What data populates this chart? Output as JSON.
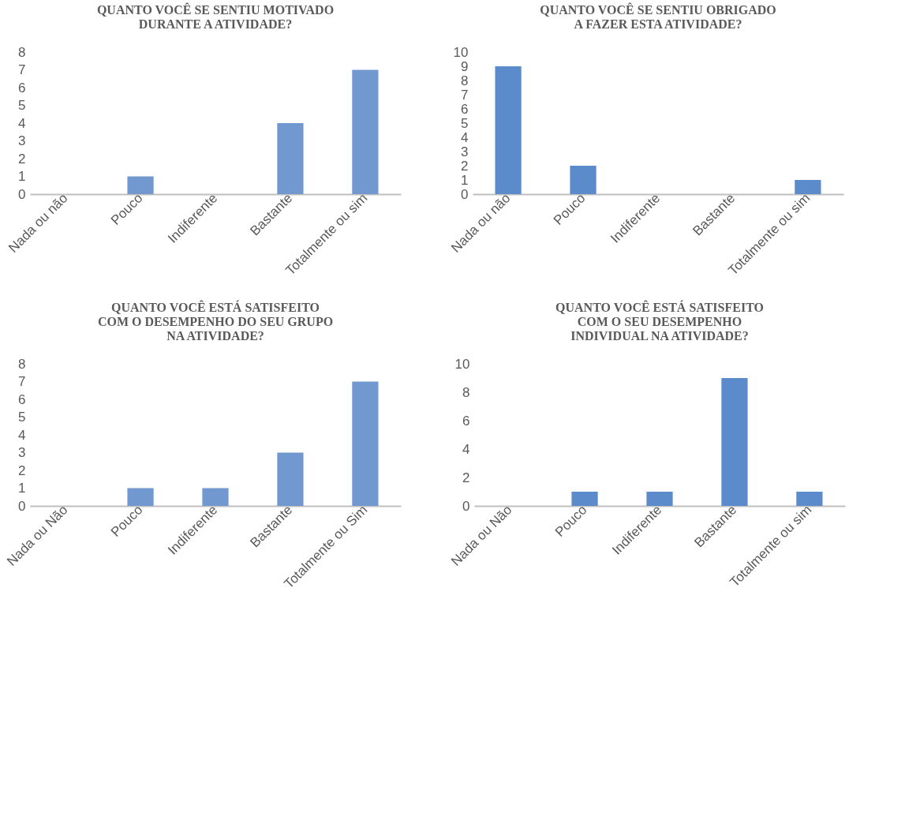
{
  "chart_data": [
    {
      "type": "bar",
      "title": "QUANTO VOCÊ SE SENTIU MOTIVADO DURANTE A ATIVIDADE?",
      "categories": [
        "Nada ou não",
        "Pouco",
        "Indiferente",
        "Bastante",
        "Totalmente ou sim"
      ],
      "values": [
        0,
        1,
        0,
        4,
        7
      ],
      "color": "#7199d0",
      "ylim": [
        0,
        8
      ],
      "yticks": [
        0,
        1,
        2,
        3,
        4,
        5,
        6,
        7,
        8
      ],
      "grid": false
    },
    {
      "type": "bar",
      "title": "QUANTO VOCÊ SE SENTIU OBRIGADO A FAZER ESTA ATIVIDADE?",
      "categories": [
        "Nada ou não",
        "Pouco",
        "Indiferente",
        "Bastante",
        "Totalmente ou sim"
      ],
      "values": [
        9,
        2,
        0,
        0,
        1
      ],
      "color": "#5b8bcb",
      "ylim": [
        0,
        10
      ],
      "yticks": [
        0,
        1,
        2,
        3,
        4,
        5,
        6,
        7,
        8,
        9,
        10
      ],
      "grid": false
    },
    {
      "type": "bar",
      "title": "QUANTO VOCÊ ESTÁ SATISFEITO COM O DESEMPENHO DO SEU GRUPO NA ATIVIDADE?",
      "categories": [
        "Nada ou Não",
        "Pouco",
        "Indiferente",
        "Bastante",
        "Totalmente ou Sim"
      ],
      "values": [
        0,
        1,
        1,
        3,
        7
      ],
      "color": "#7199d0",
      "ylim": [
        0,
        8
      ],
      "yticks": [
        0,
        1,
        2,
        3,
        4,
        5,
        6,
        7,
        8
      ],
      "grid": false
    },
    {
      "type": "bar",
      "title": "QUANTO VOCÊ ESTÁ SATISFEITO COM O SEU DESEMPENHO INDIVIDUAL NA ATIVIDADE?",
      "categories": [
        "Nada ou Não",
        "Pouco",
        "Indiferente",
        "Bastante",
        "Totalmente ou sim"
      ],
      "values": [
        0,
        1,
        1,
        9,
        1
      ],
      "color": "#5b8bcb",
      "ylim": [
        0,
        10
      ],
      "yticks": [
        0,
        2,
        4,
        6,
        8,
        10
      ],
      "grid": false
    }
  ]
}
